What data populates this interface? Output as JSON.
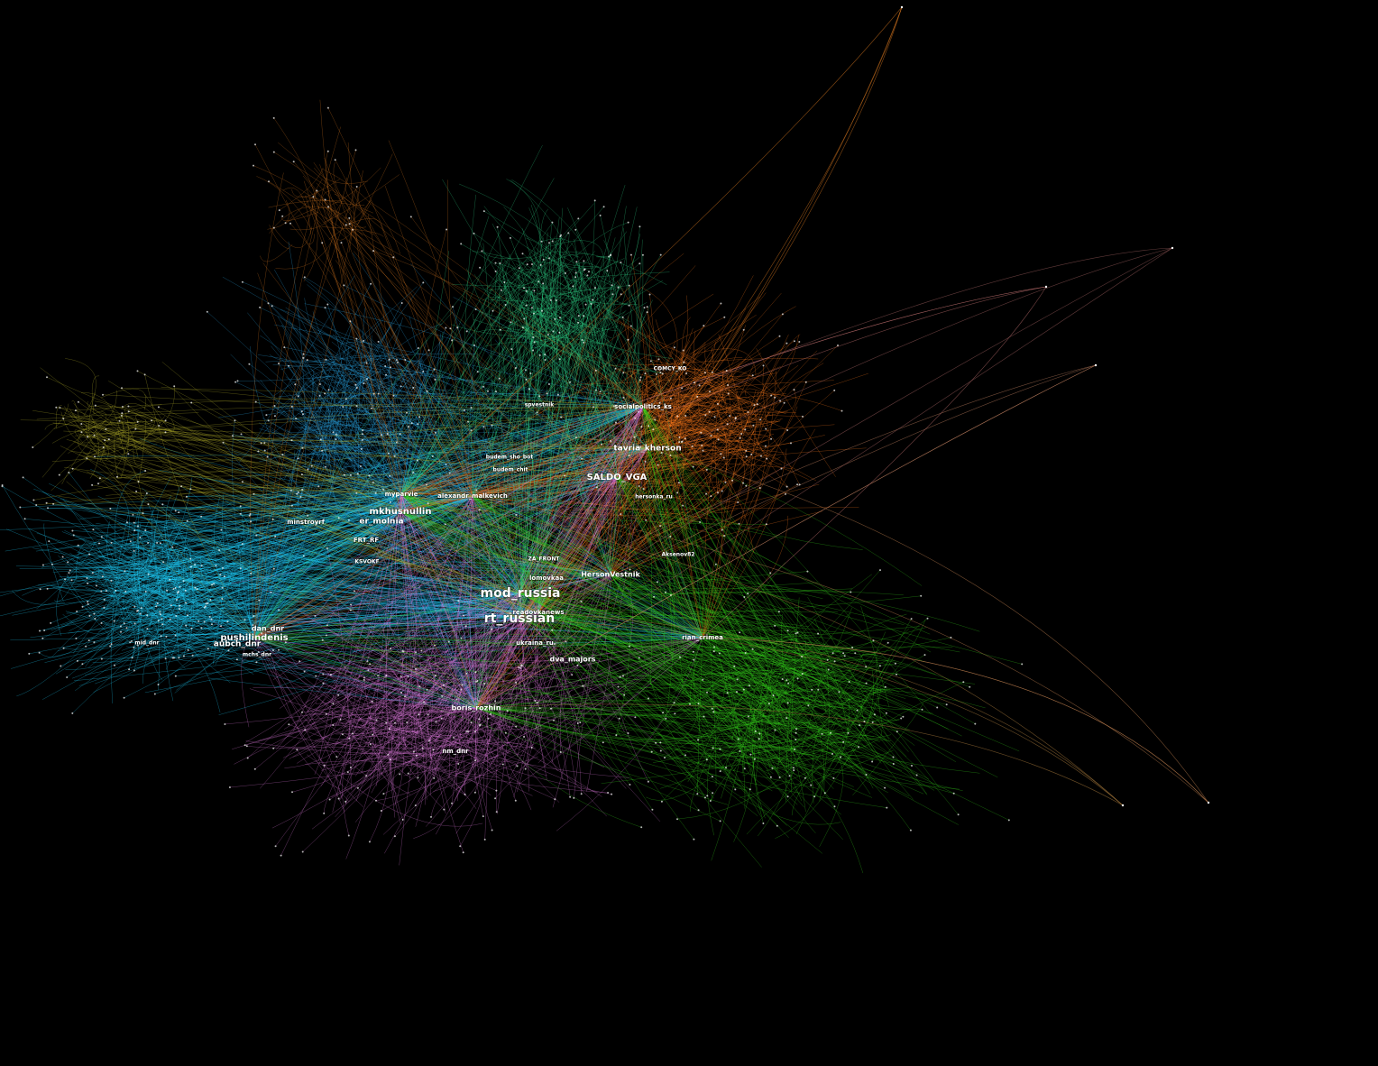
{
  "nodes": [
    {
      "label": "mod_russia"
    },
    {
      "label": "rt_russian"
    },
    {
      "label": "SALDO_VGA"
    },
    {
      "label": "tavria_kherson"
    },
    {
      "label": "mkhusnullin"
    },
    {
      "label": "er_molnia"
    },
    {
      "label": "pushilindenis"
    },
    {
      "label": "aubch_dnr"
    },
    {
      "label": "dan_dnr"
    },
    {
      "label": "minstroyrf"
    },
    {
      "label": "myparvie"
    },
    {
      "label": "alexandr_malkevich"
    },
    {
      "label": "FRT_RF"
    },
    {
      "label": "KSVOKF"
    },
    {
      "label": "HersonVestnik"
    },
    {
      "label": "lomovkaa"
    },
    {
      "label": "ZA_FRONT"
    },
    {
      "label": "readovkanews"
    },
    {
      "label": "ukraina_ru"
    },
    {
      "label": "dva_majors"
    },
    {
      "label": "boris_rozhin"
    },
    {
      "label": "nm_dnr"
    },
    {
      "label": "rian_crimea"
    },
    {
      "label": "socialpolitics_ks"
    },
    {
      "label": "COMCY_KO"
    },
    {
      "label": "budem_chit"
    },
    {
      "label": "budem_sho_bot"
    },
    {
      "label": "hersonka_ru"
    },
    {
      "label": "Aksenov82"
    },
    {
      "label": "mid_dnr"
    },
    {
      "label": "mchs_dnr"
    },
    {
      "label": "spvestnik"
    }
  ]
}
